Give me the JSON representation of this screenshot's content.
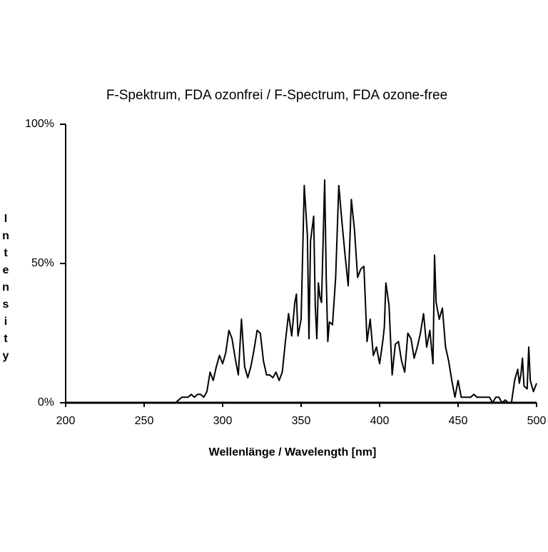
{
  "chart_data": {
    "type": "line",
    "title": "F-Spektrum, FDA ozonfrei / F-Spectrum, FDA ozone-free",
    "x_label": "Wellenlänge / Wavelength [nm]",
    "y_label": "Intensity",
    "xlim": [
      200,
      500
    ],
    "xticks": [
      200,
      250,
      300,
      350,
      400,
      450,
      500
    ],
    "ylim": [
      0,
      100
    ],
    "yticks": [
      {
        "value": 0,
        "label": "0%"
      },
      {
        "value": 50,
        "label": "50%"
      },
      {
        "value": 100,
        "label": "100%"
      }
    ],
    "series": [
      {
        "name": "F-Spektrum",
        "color": "#000000",
        "x": [
          200,
          270,
          272,
          274,
          276,
          278,
          280,
          282,
          284,
          286,
          288,
          290,
          292,
          294,
          296,
          298,
          300,
          302,
          304,
          306,
          308,
          310,
          312,
          314,
          316,
          318,
          320,
          322,
          324,
          326,
          328,
          330,
          332,
          334,
          336,
          338,
          340,
          342,
          344,
          346,
          347,
          348,
          350,
          352,
          354,
          355,
          356,
          358,
          359,
          360,
          361,
          362,
          363,
          365,
          366,
          367,
          368,
          370,
          372,
          374,
          376,
          378,
          380,
          382,
          384,
          386,
          388,
          390,
          392,
          394,
          396,
          398,
          400,
          402,
          403,
          404,
          406,
          408,
          410,
          412,
          414,
          416,
          418,
          420,
          422,
          424,
          426,
          428,
          430,
          432,
          434,
          435,
          436,
          438,
          440,
          442,
          444,
          446,
          448,
          450,
          452,
          454,
          456,
          458,
          460,
          462,
          466,
          470,
          472,
          474,
          476,
          478,
          480,
          482,
          484,
          486,
          488,
          489,
          490,
          491,
          492,
          494,
          495,
          496,
          498,
          500
        ],
        "values": [
          0,
          0,
          1,
          2,
          2,
          2,
          3,
          2,
          3,
          3,
          2,
          4,
          11,
          8,
          13,
          17,
          14,
          18,
          26,
          23,
          16,
          10,
          30,
          13,
          9,
          13,
          19,
          26,
          25,
          15,
          10,
          10,
          9,
          11,
          8,
          11,
          22,
          32,
          24,
          36,
          39,
          24,
          30,
          78,
          60,
          23,
          58,
          67,
          35,
          23,
          43,
          38,
          36,
          80,
          45,
          22,
          29,
          28,
          45,
          78,
          65,
          53,
          42,
          73,
          62,
          45,
          48,
          49,
          22,
          30,
          17,
          20,
          14,
          22,
          27,
          43,
          35,
          10,
          21,
          22,
          15,
          11,
          25,
          23,
          16,
          20,
          25,
          32,
          20,
          26,
          14,
          53,
          36,
          30,
          34,
          20,
          15,
          8,
          2,
          8,
          2,
          2,
          2,
          2,
          3,
          2,
          2,
          2,
          0,
          2,
          2,
          0,
          1,
          0,
          0,
          8,
          12,
          7,
          10,
          16,
          6,
          5,
          20,
          8,
          4,
          7
        ]
      }
    ]
  }
}
